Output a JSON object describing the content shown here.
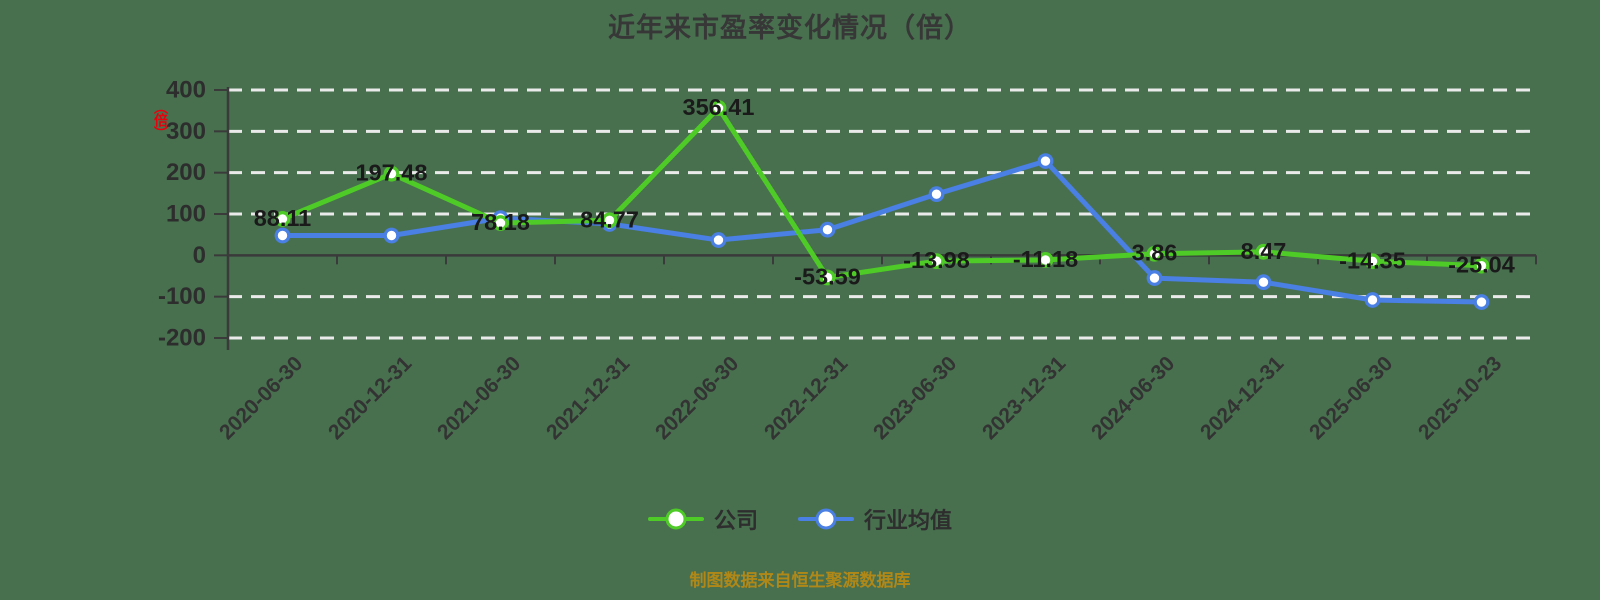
{
  "chart_data": {
    "type": "line",
    "title": "近年来市盈率变化情况（倍）",
    "y_axis_unit_label": "（倍）",
    "categories": [
      "2020-06-30",
      "2020-12-31",
      "2021-06-30",
      "2021-12-31",
      "2022-06-30",
      "2022-12-31",
      "2023-06-30",
      "2023-12-31",
      "2024-06-30",
      "2024-12-31",
      "2025-06-30",
      "2025-10-23"
    ],
    "series": [
      {
        "id": "company",
        "name": "公司",
        "color": "#4ecb26",
        "show_labels": true,
        "values": [
          88.11,
          197.48,
          78.18,
          84.77,
          356.41,
          -53.59,
          -13.98,
          -11.18,
          3.86,
          8.47,
          -14.35,
          -25.04
        ]
      },
      {
        "id": "industry",
        "name": "行业均值",
        "color": "#4a7fe3",
        "show_labels": false,
        "values": [
          48,
          48,
          90,
          76,
          37,
          62,
          148,
          228,
          -55,
          -65,
          -108,
          -113
        ]
      }
    ],
    "y_ticks": [
      400,
      300,
      200,
      100,
      0,
      -100,
      -200
    ],
    "ylim": [
      -200,
      400
    ],
    "grid": "horizontal-dashed",
    "legend_position": "bottom"
  },
  "footer": {
    "note": "制图数据来自恒生聚源数据库"
  },
  "colors": {
    "background": "#48704f",
    "company_line": "#4ecb26",
    "industry_line": "#4a7fe3",
    "grid_line": "#eaeaea",
    "axis_line": "#3a3a3a",
    "tick_label": "#2d2d2d",
    "point_label": "#1a1a1a",
    "date_label": "#333333",
    "legend_text": "#2e2e2e",
    "footer_text": "#b08818",
    "unit_red": "#e8000c"
  }
}
